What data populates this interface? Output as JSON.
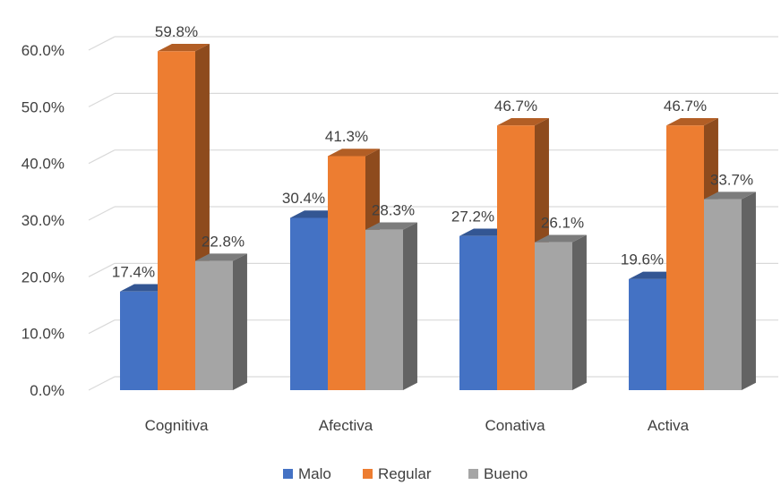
{
  "chart_data": {
    "type": "bar",
    "categories": [
      "Cognitiva",
      "Afectiva",
      "Conativa",
      "Activa"
    ],
    "series": [
      {
        "name": "Malo",
        "values": [
          17.4,
          30.4,
          27.2,
          19.6
        ],
        "labels": [
          "17.4%",
          "30.4%",
          "27.2%",
          "19.6%"
        ],
        "color": "#4472C4"
      },
      {
        "name": "Regular",
        "values": [
          59.8,
          41.3,
          46.7,
          46.7
        ],
        "labels": [
          "59.8%",
          "41.3%",
          "46.7%",
          "46.7%"
        ],
        "color": "#ED7D31"
      },
      {
        "name": "Bueno",
        "values": [
          22.8,
          28.3,
          26.1,
          33.7
        ],
        "labels": [
          "22.8%",
          "28.3%",
          "26.1%",
          "33.7%"
        ],
        "color": "#A5A5A5"
      }
    ],
    "y_ticks": [
      {
        "value": 0,
        "label": "0.0%"
      },
      {
        "value": 10,
        "label": "10.0%"
      },
      {
        "value": 20,
        "label": "20.0%"
      },
      {
        "value": 30,
        "label": "30.0%"
      },
      {
        "value": 40,
        "label": "40.0%"
      },
      {
        "value": 50,
        "label": "50.0%"
      },
      {
        "value": 60,
        "label": "60.0%"
      }
    ],
    "ylim": [
      0,
      60
    ],
    "title": "",
    "xlabel": "",
    "ylabel": "",
    "grid": true,
    "legend_position": "bottom",
    "style": "3d-clustered-column"
  }
}
